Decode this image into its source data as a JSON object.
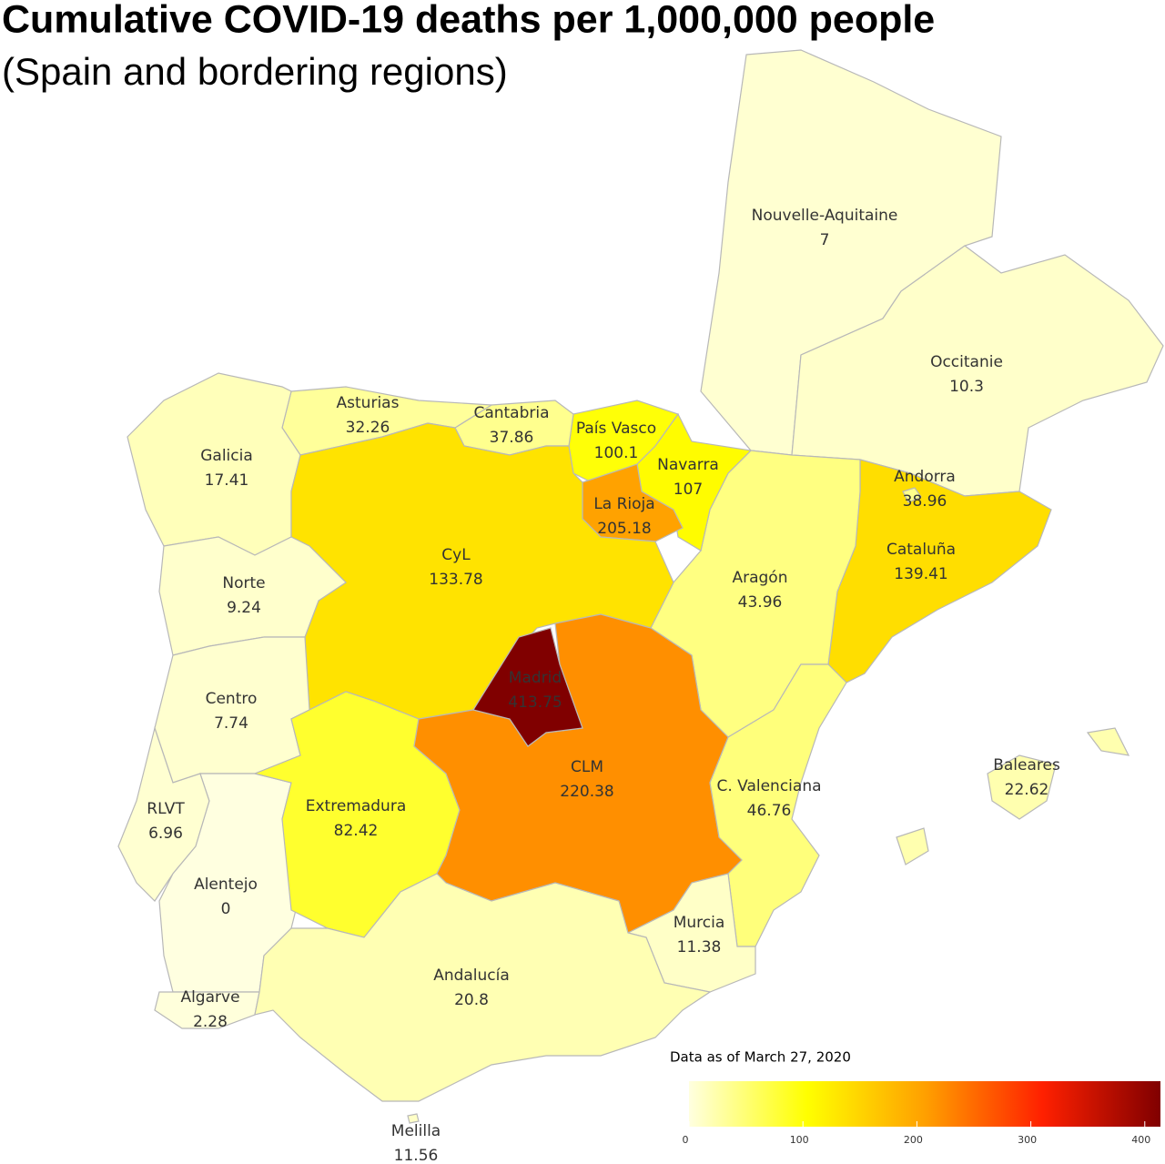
{
  "chart_data": {
    "type": "choropleth",
    "title": "Cumulative COVID-19 deaths per 1,000,000 people",
    "subtitle": "(Spain and bordering regions)",
    "note": "Data as of March 27, 2020",
    "regions": [
      {
        "name": "Nouvelle-Aquitaine",
        "value": 7
      },
      {
        "name": "Occitanie",
        "value": 10.3
      },
      {
        "name": "Cataluña",
        "value": 139.41
      },
      {
        "name": "Andorra",
        "value": 38.96
      },
      {
        "name": "Aragón",
        "value": 43.96
      },
      {
        "name": "Navarra",
        "value": 107
      },
      {
        "name": "País Vasco",
        "value": 100.1
      },
      {
        "name": "La Rioja",
        "value": 205.18
      },
      {
        "name": "Cantabria",
        "value": 37.86
      },
      {
        "name": "Asturias",
        "value": 32.26
      },
      {
        "name": "Galicia",
        "value": 17.41
      },
      {
        "name": "CyL",
        "value": 133.78
      },
      {
        "name": "Norte",
        "value": 9.24
      },
      {
        "name": "Centro",
        "value": 7.74
      },
      {
        "name": "RLVT",
        "value": 6.96
      },
      {
        "name": "Alentejo",
        "value": 0
      },
      {
        "name": "Algarve",
        "value": 2.28
      },
      {
        "name": "Extremadura",
        "value": 82.42
      },
      {
        "name": "CLM",
        "value": 220.38
      },
      {
        "name": "Madrid",
        "value": 413.75
      },
      {
        "name": "C. Valenciana",
        "value": 46.76
      },
      {
        "name": "Murcia",
        "value": 11.38
      },
      {
        "name": "Andalucía",
        "value": 20.8
      },
      {
        "name": "Baleares",
        "value": 22.62
      },
      {
        "name": "Melilla",
        "value": 11.56
      }
    ],
    "colorbar": {
      "lim": [
        0,
        413.75
      ],
      "ticks": [
        0,
        100,
        200,
        300,
        400
      ],
      "colors": [
        "#ffffe0",
        "#ffff00",
        "#ffa000",
        "#ff2000",
        "#800000"
      ]
    }
  }
}
